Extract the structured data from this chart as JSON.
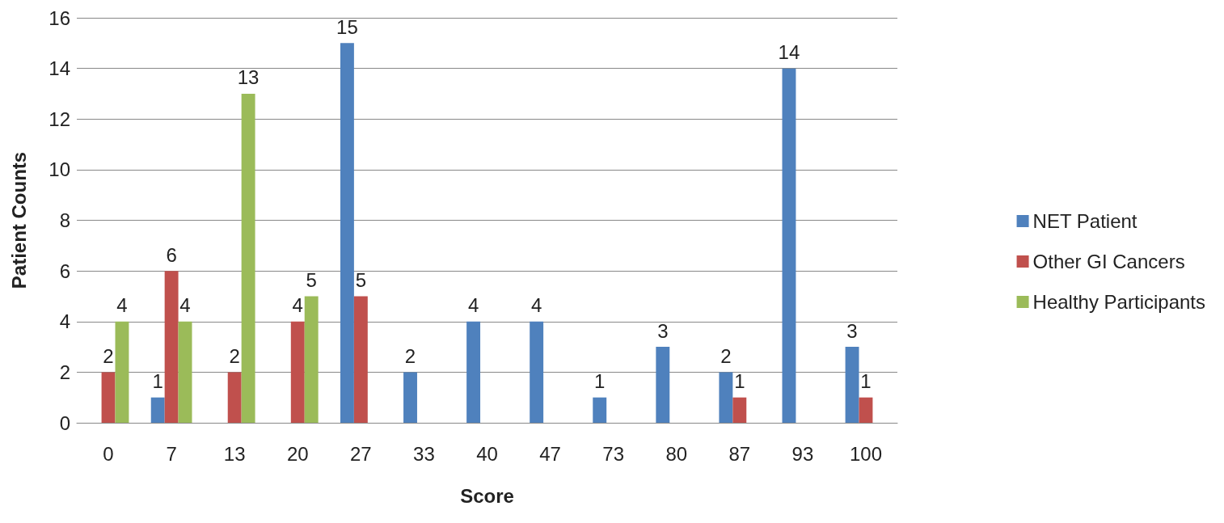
{
  "chart_data": {
    "type": "bar",
    "xlabel": "Score",
    "ylabel": "Patient Counts",
    "categories": [
      "0",
      "7",
      "13",
      "20",
      "27",
      "33",
      "40",
      "47",
      "73",
      "80",
      "87",
      "93",
      "100"
    ],
    "series": [
      {
        "name": "NET Patient",
        "color": "#4f81bd",
        "values": [
          null,
          1,
          null,
          null,
          15,
          2,
          4,
          4,
          1,
          3,
          2,
          14,
          3
        ]
      },
      {
        "name": "Other GI Cancers",
        "color": "#c0504d",
        "values": [
          2,
          6,
          2,
          4,
          5,
          null,
          null,
          null,
          null,
          null,
          1,
          null,
          1
        ]
      },
      {
        "name": "Healthy Participants",
        "color": "#9bbb59",
        "values": [
          4,
          4,
          13,
          5,
          null,
          null,
          null,
          null,
          null,
          null,
          null,
          null,
          null
        ]
      }
    ],
    "ylim": [
      0,
      16
    ],
    "yticks": [
      0,
      2,
      4,
      6,
      8,
      10,
      12,
      14,
      16
    ],
    "grid": "y",
    "legend": "right",
    "data_labels": true
  }
}
